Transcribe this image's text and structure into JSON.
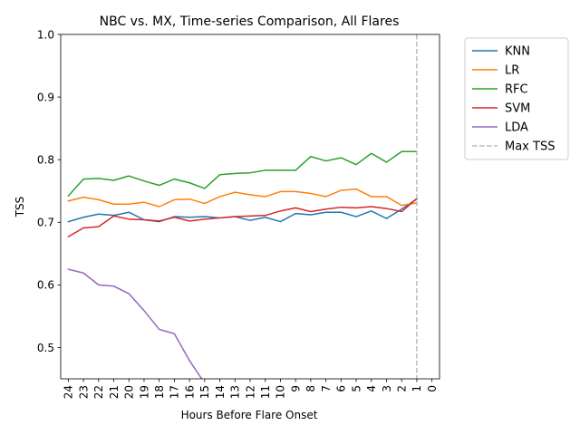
{
  "chart_data": {
    "type": "line",
    "title": "NBC vs. MX, Time-series Comparison, All Flares",
    "xlabel": "Hours Before Flare Onset",
    "ylabel": "TSS",
    "x": [
      24,
      23,
      22,
      21,
      20,
      19,
      18,
      17,
      16,
      15,
      14,
      13,
      12,
      11,
      10,
      9,
      8,
      7,
      6,
      5,
      4,
      3,
      2,
      1
    ],
    "x_ticks": [
      "24",
      "23",
      "22",
      "21",
      "20",
      "19",
      "18",
      "17",
      "16",
      "15",
      "14",
      "13",
      "12",
      "11",
      "10",
      "9",
      "8",
      "7",
      "6",
      "5",
      "4",
      "3",
      "2",
      "1",
      "0"
    ],
    "x_reversed": true,
    "ylim": [
      0.45,
      1.0
    ],
    "y_ticks": [
      "0.5",
      "0.6",
      "0.7",
      "0.8",
      "0.9",
      "1.0"
    ],
    "grid": false,
    "legend_position": "outside-right",
    "series": [
      {
        "name": "KNN",
        "color": "#1f77b4",
        "values": [
          0.701,
          0.708,
          0.713,
          0.711,
          0.716,
          0.704,
          0.701,
          0.709,
          0.708,
          0.709,
          0.707,
          0.709,
          0.703,
          0.708,
          0.701,
          0.714,
          0.712,
          0.716,
          0.716,
          0.709,
          0.718,
          0.706,
          0.721,
          0.737
        ]
      },
      {
        "name": "LR",
        "color": "#ff7f0e",
        "values": [
          0.734,
          0.74,
          0.736,
          0.729,
          0.729,
          0.732,
          0.725,
          0.736,
          0.737,
          0.73,
          0.741,
          0.748,
          0.744,
          0.741,
          0.749,
          0.749,
          0.746,
          0.741,
          0.751,
          0.753,
          0.741,
          0.741,
          0.727,
          0.731
        ]
      },
      {
        "name": "RFC",
        "color": "#2ca02c",
        "values": [
          0.742,
          0.769,
          0.77,
          0.767,
          0.774,
          0.766,
          0.759,
          0.769,
          0.763,
          0.754,
          0.776,
          0.778,
          0.779,
          0.783,
          0.783,
          0.783,
          0.805,
          0.798,
          0.803,
          0.792,
          0.81,
          0.796,
          0.813,
          0.813
        ]
      },
      {
        "name": "SVM",
        "color": "#d62728",
        "values": [
          0.677,
          0.691,
          0.693,
          0.71,
          0.705,
          0.704,
          0.702,
          0.708,
          0.702,
          0.705,
          0.707,
          0.709,
          0.71,
          0.711,
          0.718,
          0.723,
          0.717,
          0.721,
          0.724,
          0.723,
          0.725,
          0.722,
          0.717,
          0.738
        ]
      },
      {
        "name": "LDA",
        "color": "#9467bd",
        "values": [
          0.625,
          0.619,
          0.6,
          0.598,
          0.586,
          0.559,
          0.529,
          0.522,
          0.479,
          0.443,
          null,
          null,
          null,
          null,
          null,
          null,
          null,
          null,
          null,
          null,
          null,
          null,
          null,
          null
        ]
      }
    ],
    "reference_line": {
      "name": "Max TSS",
      "x": 1,
      "color": "#bbbbbb",
      "style": "dashed"
    }
  }
}
